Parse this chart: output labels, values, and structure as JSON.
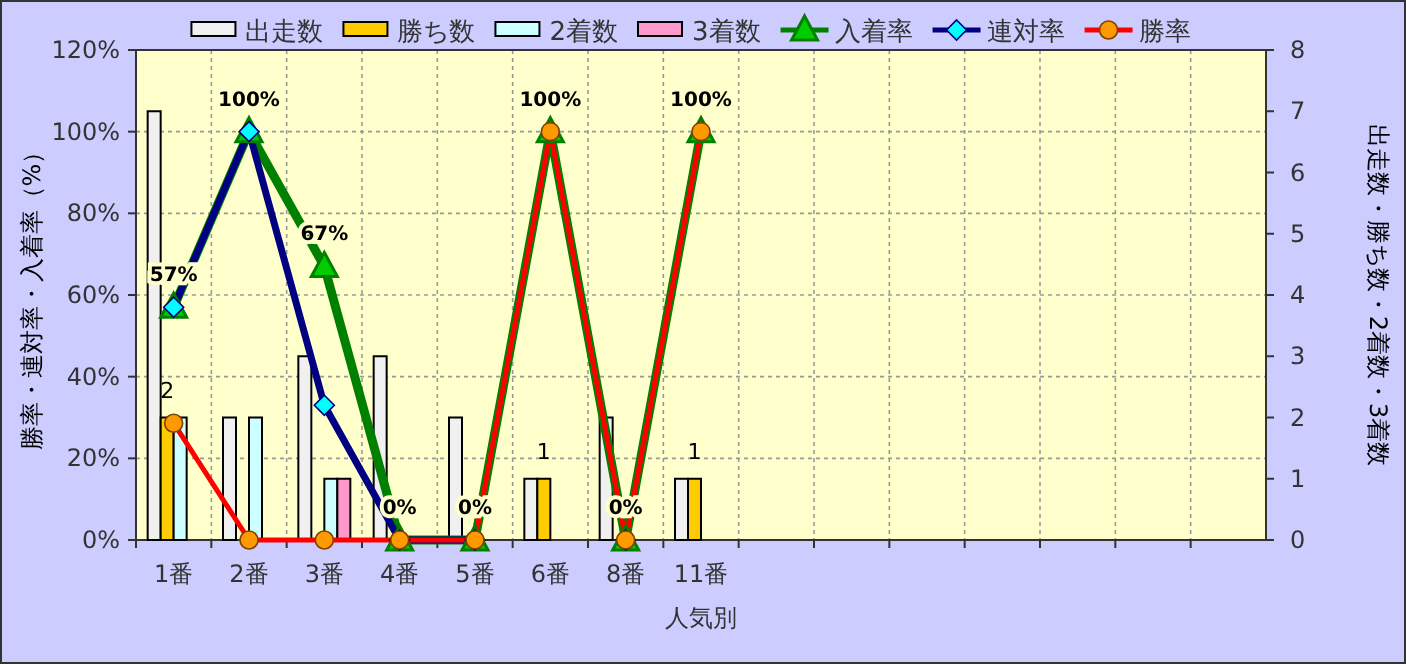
{
  "chart_data": {
    "type": "bar",
    "xlabel": "人気別",
    "ylabel": "勝率・連対率・入着率（%）",
    "y2label": "出走数・勝ち数・2着数・3着数",
    "categories": [
      "1番",
      "2番",
      "3番",
      "4番",
      "5番",
      "6番",
      "8番",
      "11番",
      null,
      null,
      null,
      null,
      null,
      null,
      null
    ],
    "ylim": [
      0,
      120
    ],
    "yticks": [
      {
        "value": 0,
        "label": "0%"
      },
      {
        "value": 20,
        "label": "20%"
      },
      {
        "value": 40,
        "label": "40%"
      },
      {
        "value": 60,
        "label": "60%"
      },
      {
        "value": 80,
        "label": "80%"
      },
      {
        "value": 100,
        "label": "100%"
      },
      {
        "value": 120,
        "label": "120%"
      }
    ],
    "y2lim": [
      0,
      8
    ],
    "y2ticks": [
      0,
      1,
      2,
      3,
      4,
      5,
      6,
      7,
      8
    ],
    "grid": true,
    "legend": "top",
    "series": [
      {
        "name": "出走数",
        "axis": "y2",
        "color": "#f0f0f0",
        "values": [
          7,
          2,
          3,
          3,
          2,
          1,
          2,
          1,
          null,
          null,
          null,
          null,
          null,
          null,
          null
        ]
      },
      {
        "name": "勝ち数",
        "axis": "y2",
        "color": "#ffcc00",
        "values": [
          2,
          0,
          0,
          0,
          0,
          1,
          0,
          1,
          null,
          null,
          null,
          null,
          null,
          null,
          null
        ],
        "value_labels": [
          "2",
          null,
          null,
          null,
          null,
          "1",
          null,
          "1",
          null,
          null,
          null,
          null,
          null,
          null,
          null
        ]
      },
      {
        "name": "2着数",
        "axis": "y2",
        "color": "#ccffff",
        "values": [
          2,
          2,
          1,
          0,
          0,
          0,
          0,
          0,
          null,
          null,
          null,
          null,
          null,
          null,
          null
        ]
      },
      {
        "name": "3着数",
        "axis": "y2",
        "color": "#ff99cc",
        "values": [
          0,
          0,
          1,
          0,
          0,
          0,
          0,
          0,
          null,
          null,
          null,
          null,
          null,
          null,
          null
        ]
      },
      {
        "name": "入着率",
        "type": "line",
        "color": "#008000",
        "marker": "triangle",
        "values": [
          57,
          100,
          67,
          0,
          0,
          100,
          0,
          100,
          null,
          null,
          null,
          null,
          null,
          null,
          null
        ],
        "value_labels": [
          "57%",
          "100%",
          "67%",
          "0%",
          "0%",
          "100%",
          "0%",
          "100%",
          null,
          null,
          null,
          null,
          null,
          null,
          null
        ]
      },
      {
        "name": "連対率",
        "type": "line",
        "color": "#000080",
        "marker": "diamond",
        "values": [
          57,
          100,
          33,
          0,
          0,
          null,
          0,
          null,
          null,
          null,
          null,
          null,
          null,
          null,
          null
        ]
      },
      {
        "name": "勝率",
        "type": "line",
        "color": "#ff0000",
        "marker": "circle",
        "values": [
          28.6,
          0,
          0,
          0,
          0,
          100,
          0,
          100,
          null,
          null,
          null,
          null,
          null,
          null,
          null
        ]
      }
    ]
  }
}
